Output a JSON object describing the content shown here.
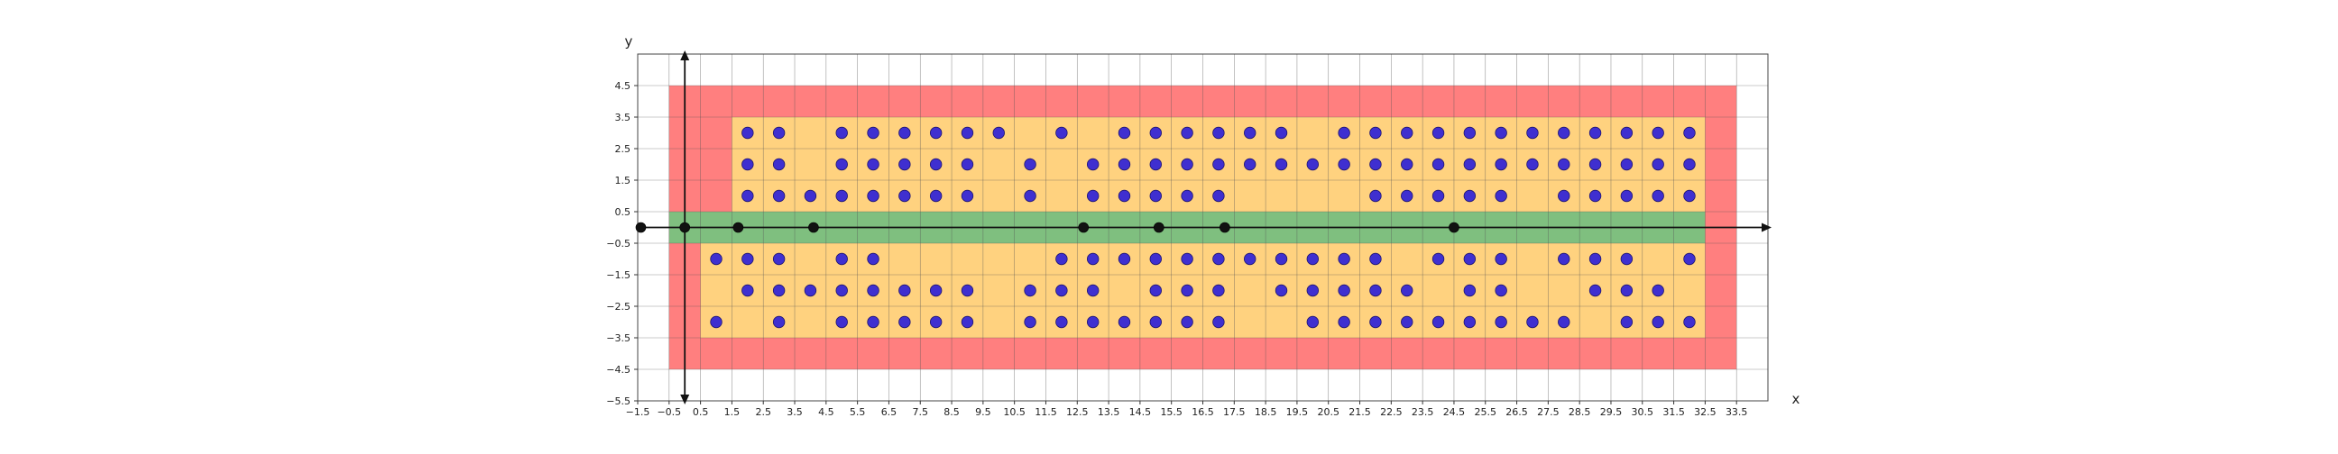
{
  "chart_data": {
    "type": "scatter",
    "title": "",
    "xlabel": "x",
    "ylabel": "y",
    "xlim": [
      -1.5,
      34.5
    ],
    "ylim": [
      -5.5,
      5.5
    ],
    "grid": true,
    "x_ticks": [
      -1.5,
      -0.5,
      0.5,
      1.5,
      2.5,
      3.5,
      4.5,
      5.5,
      6.5,
      7.5,
      8.5,
      9.5,
      10.5,
      11.5,
      12.5,
      13.5,
      14.5,
      15.5,
      16.5,
      17.5,
      18.5,
      19.5,
      20.5,
      21.5,
      22.5,
      23.5,
      24.5,
      25.5,
      26.5,
      27.5,
      28.5,
      29.5,
      30.5,
      31.5,
      32.5,
      33.5
    ],
    "x_tick_labels": [
      "−1.5",
      "−0.5",
      "0.5",
      "1.5",
      "2.5",
      "3.5",
      "4.5",
      "5.5",
      "6.5",
      "7.5",
      "8.5",
      "9.5",
      "10.5",
      "11.5",
      "12.5",
      "13.5",
      "14.5",
      "15.5",
      "16.5",
      "17.5",
      "18.5",
      "19.5",
      "20.5",
      "21.5",
      "22.5",
      "23.5",
      "24.5",
      "25.5",
      "26.5",
      "27.5",
      "28.5",
      "29.5",
      "30.5",
      "31.5",
      "32.5",
      "33.5"
    ],
    "y_ticks": [
      4.5,
      3.5,
      2.5,
      1.5,
      0.5,
      -0.5,
      -1.5,
      -2.5,
      -3.5,
      -4.5,
      -5.5
    ],
    "y_tick_labels": [
      "4.5",
      "3.5",
      "2.5",
      "1.5",
      "0.5",
      "−0.5",
      "−1.5",
      "−2.5",
      "−3.5",
      "−4.5",
      "−5.5"
    ],
    "regions": [
      {
        "color": "#ff7f7f",
        "polygon": [
          [
            -0.5,
            4.5
          ],
          [
            33.5,
            4.5
          ],
          [
            33.5,
            -4.5
          ],
          [
            -0.5,
            -4.5
          ]
        ]
      },
      {
        "color": "#ffd27f",
        "polygon": [
          [
            1.5,
            3.5
          ],
          [
            32.5,
            3.5
          ],
          [
            32.5,
            -3.5
          ],
          [
            0.5,
            -3.5
          ],
          [
            0.5,
            -0.5
          ],
          [
            1.5,
            -0.5
          ]
        ]
      },
      {
        "color": "#7fbf7f",
        "polygon": [
          [
            -0.5,
            0.5
          ],
          [
            32.5,
            0.5
          ],
          [
            32.5,
            -0.5
          ],
          [
            -0.5,
            -0.5
          ]
        ]
      }
    ],
    "axis_line_points": {
      "name": "axis line points",
      "color": "#111111",
      "points": [
        [
          -1.4,
          0
        ],
        [
          0,
          0
        ],
        [
          1.7,
          0
        ],
        [
          4.1,
          0
        ],
        [
          12.7,
          0
        ],
        [
          15.1,
          0
        ],
        [
          17.2,
          0
        ],
        [
          24.5,
          0
        ]
      ]
    },
    "blue_points": {
      "color": "#3f2fd0",
      "upper_rows": [
        {
          "y": 3,
          "x": [
            2,
            3,
            5,
            6,
            7,
            8,
            9,
            10,
            12,
            14,
            15,
            16,
            17,
            18,
            19,
            21,
            22,
            23,
            24,
            25,
            26,
            27,
            28,
            29,
            30,
            31,
            32
          ]
        },
        {
          "y": 2,
          "x": [
            2,
            3,
            5,
            6,
            7,
            8,
            9,
            11,
            13,
            14,
            15,
            16,
            17,
            18,
            19,
            20,
            21,
            22,
            23,
            24,
            25,
            26,
            27,
            28,
            29,
            30,
            31,
            32
          ]
        },
        {
          "y": 1,
          "x": [
            2,
            3,
            4,
            5,
            6,
            7,
            8,
            9,
            11,
            13,
            14,
            15,
            16,
            17,
            22,
            23,
            24,
            25,
            26,
            28,
            29,
            30,
            31,
            32
          ]
        }
      ],
      "lower_rows": [
        {
          "y": -1,
          "x": [
            1,
            2,
            3,
            5,
            6,
            12,
            13,
            14,
            15,
            16,
            17,
            18,
            19,
            20,
            21,
            22,
            24,
            25,
            26,
            28,
            29,
            30,
            32
          ]
        },
        {
          "y": -2,
          "x": [
            2,
            3,
            4,
            5,
            6,
            7,
            8,
            9,
            11,
            12,
            13,
            15,
            16,
            17,
            19,
            20,
            21,
            22,
            23,
            25,
            26,
            29,
            30,
            31
          ]
        },
        {
          "y": -3,
          "x": [
            1,
            3,
            5,
            6,
            7,
            8,
            9,
            11,
            12,
            13,
            14,
            15,
            16,
            17,
            20,
            21,
            22,
            23,
            24,
            25,
            26,
            27,
            28,
            30,
            31,
            32
          ]
        }
      ]
    }
  }
}
